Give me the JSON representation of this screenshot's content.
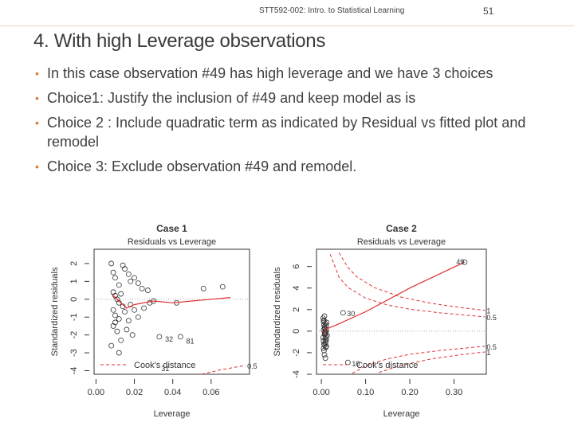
{
  "header": {
    "course": "STT592-002: Intro. to Statistical Learning",
    "page": "51"
  },
  "title": "4. With high Leverage observations",
  "bullets": [
    "In this case observation #49 has high leverage and we have 3 choices",
    "Choice1: Justify the inclusion of #49 and keep model as is",
    "Choice 2 : Include quadratic term as indicated by Residual vs fitted plot and remodel",
    "Choice 3: Exclude observation #49 and remodel."
  ],
  "chart_data": [
    {
      "type": "scatter",
      "title": "Case 1",
      "subtitle": "Residuals vs Leverage",
      "x_label": "Leverage",
      "y_label": "Standardized residuals",
      "xlim": [
        -0.001,
        0.08
      ],
      "ylim": [
        -4.2,
        2.8
      ],
      "xticks": [
        {
          "value": 0,
          "label": "0.00"
        },
        {
          "value": 0.02,
          "label": "0.02"
        },
        {
          "value": 0.04,
          "label": "0.04"
        },
        {
          "value": 0.06,
          "label": "0.06"
        }
      ],
      "yticks": [
        -4,
        -3,
        -2,
        -1,
        0,
        1,
        2
      ],
      "legend": "bottom-left",
      "points": {
        "color": "#333333",
        "x": [
          0.008,
          0.009,
          0.01,
          0.012,
          0.015,
          0.017,
          0.018,
          0.02,
          0.022,
          0.024,
          0.027,
          0.009,
          0.01,
          0.011,
          0.012,
          0.013,
          0.014,
          0.009,
          0.01,
          0.012,
          0.015,
          0.018,
          0.02,
          0.022,
          0.025,
          0.028,
          0.03,
          0.009,
          0.011,
          0.013,
          0.016,
          0.019,
          0.008,
          0.012,
          0.033,
          0.044,
          0.042,
          0.056,
          0.066,
          0.01,
          0.017,
          0.014
        ],
        "y": [
          2.0,
          1.5,
          1.2,
          0.8,
          1.7,
          1.4,
          1.0,
          1.2,
          0.9,
          0.6,
          0.5,
          0.4,
          0.2,
          0.0,
          -0.2,
          0.3,
          -0.4,
          -0.6,
          -0.9,
          -1.1,
          -0.7,
          -0.3,
          -0.6,
          -1.0,
          -0.5,
          -0.2,
          -0.1,
          -1.5,
          -1.8,
          -2.3,
          -1.7,
          -2.0,
          -2.6,
          -3.0,
          -2.1,
          -2.1,
          -0.2,
          0.6,
          0.7,
          -1.3,
          -1.2,
          1.9
        ]
      },
      "point_labels": [
        {
          "text": "32",
          "x": 0.036,
          "y": -2.2
        },
        {
          "text": "81",
          "x": 0.047,
          "y": -2.3
        },
        {
          "text": "31",
          "x": 0.034,
          "y": -3.85
        }
      ],
      "smooth": {
        "color": "#e03030",
        "x": [
          0.008,
          0.012,
          0.016,
          0.02,
          0.03,
          0.04,
          0.05,
          0.06,
          0.07
        ],
        "y": [
          0.3,
          -0.1,
          -0.5,
          -0.3,
          -0.1,
          -0.2,
          -0.1,
          0.0,
          0.1
        ]
      },
      "cooks_distance": {
        "name": "Cook's distance",
        "color": "#e03030",
        "curves": [
          {
            "label": "0.5",
            "x": [
              0.055,
              0.065,
              0.078
            ],
            "y": [
              -4.2,
              -3.95,
              -3.7
            ]
          }
        ]
      }
    },
    {
      "type": "scatter",
      "title": "Case 2",
      "subtitle": "Residuals vs Leverage",
      "x_label": "Leverage",
      "y_label": "Standardized residuals",
      "xlim": [
        -0.011,
        0.373
      ],
      "ylim": [
        -4,
        7.6
      ],
      "xticks": [
        {
          "value": 0,
          "label": "0.00"
        },
        {
          "value": 0.1,
          "label": "0.10"
        },
        {
          "value": 0.2,
          "label": "0.20"
        },
        {
          "value": 0.3,
          "label": "0.30"
        }
      ],
      "yticks": [
        -4,
        -2,
        0,
        2,
        4,
        6
      ],
      "legend": "bottom-left",
      "points": {
        "color": "#333333",
        "x": [
          0.004,
          0.005,
          0.006,
          0.007,
          0.008,
          0.009,
          0.01,
          0.011,
          0.012,
          0.013,
          0.004,
          0.005,
          0.006,
          0.007,
          0.008,
          0.009,
          0.01,
          0.011,
          0.012,
          0.005,
          0.006,
          0.007,
          0.008,
          0.009,
          0.01,
          0.011,
          0.006,
          0.007,
          0.008,
          0.009,
          0.01,
          0.005,
          0.007,
          0.009,
          0.049,
          0.06,
          0.324
        ],
        "y": [
          1.2,
          0.9,
          0.6,
          1.4,
          0.3,
          0.0,
          -0.2,
          0.5,
          0.8,
          -0.4,
          -0.6,
          -0.9,
          -1.2,
          -0.3,
          0.2,
          -0.7,
          -1.0,
          -1.4,
          0.1,
          -1.6,
          -1.8,
          0.4,
          -0.1,
          -1.1,
          -0.5,
          -0.8,
          1.0,
          -1.3,
          -0.2,
          0.7,
          -1.5,
          0.1,
          -2.2,
          -2.5,
          1.7,
          -2.9,
          6.4
        ]
      },
      "point_labels": [
        {
          "text": "49",
          "x": 0.305,
          "y": 6.5
        },
        {
          "text": "30",
          "x": 0.058,
          "y": 1.7
        },
        {
          "text": "10",
          "x": 0.069,
          "y": -2.95
        }
      ],
      "smooth": {
        "color": "#e03030",
        "x": [
          0.005,
          0.01,
          0.03,
          0.1,
          0.2,
          0.324
        ],
        "y": [
          -0.3,
          0.2,
          0.5,
          1.8,
          4.0,
          6.4
        ]
      },
      "cooks_distance": {
        "name": "Cook's distance",
        "color": "#e03030",
        "curves": [
          {
            "label": "1",
            "x": [
              0.04,
              0.06,
              0.08,
              0.12,
              0.18,
              0.25,
              0.32,
              0.37
            ],
            "y": [
              7.27,
              5.91,
              5.04,
              4.04,
              3.17,
              2.57,
              2.16,
              1.93
            ]
          },
          {
            "label": "0.5",
            "x": [
              0.02,
              0.04,
              0.06,
              0.1,
              0.15,
              0.2,
              0.27,
              0.37
            ],
            "y": [
              7.14,
              5.0,
              4.06,
              3.06,
              2.42,
              2.04,
              1.69,
              1.33
            ]
          },
          {
            "label": "0.5",
            "x": [
              0.07,
              0.1,
              0.15,
              0.2,
              0.27,
              0.37
            ],
            "y": [
              -3.92,
              -3.23,
              -2.56,
              -2.15,
              -1.78,
              -1.4
            ]
          },
          {
            "label": "1",
            "x": [
              0.13,
              0.18,
              0.25,
              0.32,
              0.37
            ],
            "y": [
              -3.84,
              -3.17,
              -2.57,
              -2.16,
              -1.93
            ]
          }
        ]
      }
    }
  ]
}
